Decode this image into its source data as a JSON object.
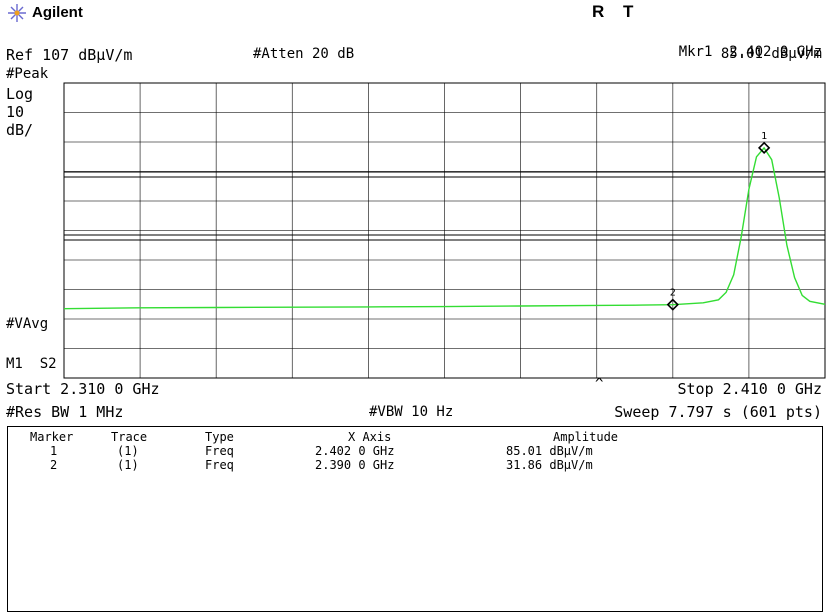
{
  "header": {
    "brand": "Agilent",
    "status_r": "R",
    "status_t": "T",
    "marker_readout_label": "Mkr1",
    "marker_readout_freq": "2.402 0 GHz",
    "marker_readout_amp": "85.01 dBμV/m"
  },
  "settings": {
    "ref_level": "Ref 107 dBμV/m",
    "attenuation": "#Atten 20 dB",
    "detector": "#Peak",
    "scale_type": "Log",
    "scale_value": "10",
    "scale_unit": "dB/",
    "avg_mode": "#VAvg",
    "marker_state": "M1  S2",
    "start": "Start 2.310 0 GHz",
    "stop": "Stop 2.410 0 GHz",
    "caret": "^",
    "rbw": "#Res BW 1 MHz",
    "vbw": "#VBW 10 Hz",
    "sweep": "Sweep 7.797 s (601 pts)"
  },
  "colors": {
    "trace": "#33dd33",
    "grid": "#000000",
    "background": "#ffffff"
  },
  "chart_data": {
    "type": "line",
    "title": "",
    "xlabel": "",
    "ylabel": "",
    "x_unit": "GHz",
    "y_unit": "dBμV/m",
    "xlim": [
      2.31,
      2.41
    ],
    "ylim": [
      7,
      107
    ],
    "scale": "log 10 dB/div",
    "grid": true,
    "legend": "none",
    "series": [
      {
        "x": [
          2.31,
          2.32,
          2.33,
          2.34,
          2.35,
          2.36,
          2.37,
          2.38,
          2.386,
          2.39,
          2.394,
          2.396,
          2.397,
          2.398,
          2.399,
          2.4,
          2.401,
          2.402,
          2.403,
          2.404,
          2.405,
          2.406,
          2.407,
          2.408,
          2.41
        ],
        "values": [
          30.5,
          30.8,
          30.9,
          31.0,
          31.1,
          31.2,
          31.4,
          31.6,
          31.7,
          31.86,
          32.5,
          33.5,
          36.0,
          42.0,
          55.0,
          71.0,
          82.0,
          85.01,
          81.0,
          68.0,
          52.0,
          41.0,
          35.0,
          33.0,
          32.0
        ]
      }
    ],
    "markers": [
      {
        "label": "1",
        "x": 2.402,
        "y": 85.01
      },
      {
        "label": "2",
        "x": 2.39,
        "y": 31.86
      }
    ]
  },
  "table": {
    "headers": [
      "Marker",
      "Trace",
      "Type",
      "X Axis",
      "Amplitude"
    ],
    "rows": [
      [
        "1",
        "(1)",
        "Freq",
        "2.402 0 GHz",
        "85.01 dBμV/m"
      ],
      [
        "2",
        "(1)",
        "Freq",
        "2.390 0 GHz",
        "31.86 dBμV/m"
      ]
    ]
  }
}
